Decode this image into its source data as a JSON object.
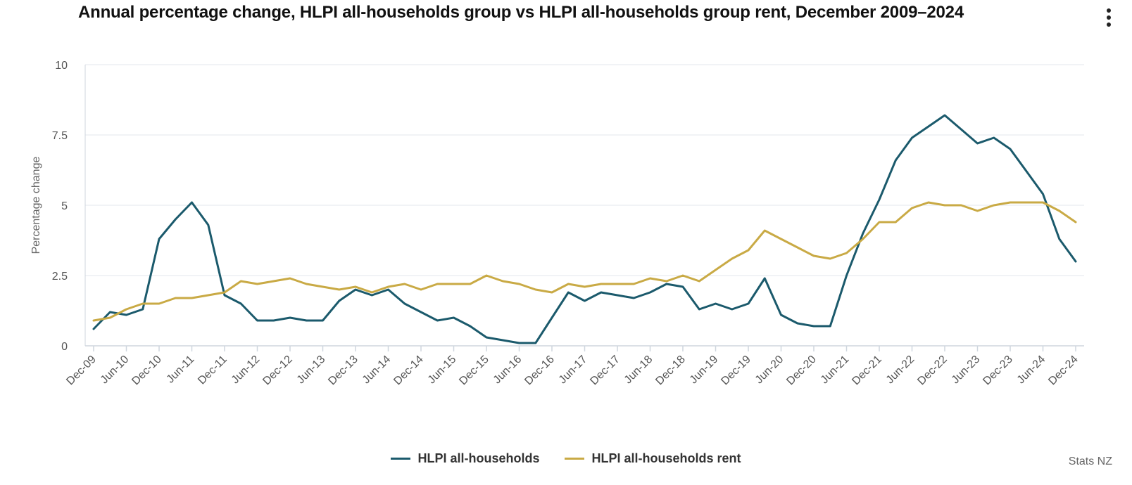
{
  "page": {
    "title": "Annual percentage change, HLPI all-households group vs HLPI all-households group rent, December 2009–2024",
    "credit": "Stats NZ",
    "menu_icon": "vertical-ellipsis-icon"
  },
  "chart_data": {
    "type": "line",
    "title": "Annual percentage change, HLPI all-households group vs HLPI all-households group rent, December 2009–2024",
    "xlabel": "",
    "ylabel": "Percentage change",
    "ylim": [
      0,
      10
    ],
    "yticks": [
      0,
      2.5,
      5,
      7.5,
      10
    ],
    "ytick_labels": [
      "0",
      "2.5",
      "5",
      "7.5",
      "10"
    ],
    "grid": true,
    "legend_position": "bottom-center",
    "x_tick_labels": [
      "Dec-09",
      "Jun-10",
      "Dec-10",
      "Jun-11",
      "Dec-11",
      "Jun-12",
      "Dec-12",
      "Jun-13",
      "Dec-13",
      "Jun-14",
      "Dec-14",
      "Jun-15",
      "Dec-15",
      "Jun-16",
      "Dec-16",
      "Jun-17",
      "Dec-17",
      "Jun-18",
      "Dec-18",
      "Jun-19",
      "Dec-19",
      "Jun-20",
      "Dec-20",
      "Jun-21",
      "Dec-21",
      "Jun-22",
      "Dec-22",
      "Jun-23",
      "Dec-23",
      "Jun-24",
      "Dec-24"
    ],
    "x": [
      "Dec-09",
      "Mar-10",
      "Jun-10",
      "Sep-10",
      "Dec-10",
      "Mar-11",
      "Jun-11",
      "Sep-11",
      "Dec-11",
      "Mar-12",
      "Jun-12",
      "Sep-12",
      "Dec-12",
      "Mar-13",
      "Jun-13",
      "Sep-13",
      "Dec-13",
      "Mar-14",
      "Jun-14",
      "Sep-14",
      "Dec-14",
      "Mar-15",
      "Jun-15",
      "Sep-15",
      "Dec-15",
      "Mar-16",
      "Jun-16",
      "Sep-16",
      "Dec-16",
      "Mar-17",
      "Jun-17",
      "Sep-17",
      "Dec-17",
      "Mar-18",
      "Jun-18",
      "Sep-18",
      "Dec-18",
      "Mar-19",
      "Jun-19",
      "Sep-19",
      "Dec-19",
      "Mar-20",
      "Jun-20",
      "Sep-20",
      "Dec-20",
      "Mar-21",
      "Jun-21",
      "Sep-21",
      "Dec-21",
      "Mar-22",
      "Jun-22",
      "Sep-22",
      "Dec-22",
      "Mar-23",
      "Jun-23",
      "Sep-23",
      "Dec-23",
      "Mar-24",
      "Jun-24",
      "Sep-24",
      "Dec-24"
    ],
    "series": [
      {
        "name": "HLPI all-households",
        "color": "#1b5a6c",
        "values": [
          0.6,
          1.2,
          1.1,
          1.3,
          3.8,
          4.5,
          5.1,
          4.3,
          1.8,
          1.5,
          0.9,
          0.9,
          1.0,
          0.9,
          0.9,
          1.6,
          2.0,
          1.8,
          2.0,
          1.5,
          1.2,
          0.9,
          1.0,
          0.7,
          0.3,
          0.2,
          0.1,
          0.1,
          1.0,
          1.9,
          1.6,
          1.9,
          1.8,
          1.7,
          1.9,
          2.2,
          2.1,
          1.3,
          1.5,
          1.3,
          1.5,
          2.4,
          1.1,
          0.8,
          0.7,
          0.7,
          2.5,
          4.0,
          5.2,
          6.6,
          7.4,
          7.8,
          8.2,
          7.7,
          7.2,
          7.4,
          7.0,
          6.2,
          5.4,
          3.8,
          3.0
        ]
      },
      {
        "name": "HLPI all-households rent",
        "color": "#c9aa45",
        "values": [
          0.9,
          1.0,
          1.3,
          1.5,
          1.5,
          1.7,
          1.7,
          1.8,
          1.9,
          2.3,
          2.2,
          2.3,
          2.4,
          2.2,
          2.1,
          2.0,
          2.1,
          1.9,
          2.1,
          2.2,
          2.0,
          2.2,
          2.2,
          2.2,
          2.5,
          2.3,
          2.2,
          2.0,
          1.9,
          2.2,
          2.1,
          2.2,
          2.2,
          2.2,
          2.4,
          2.3,
          2.5,
          2.3,
          2.7,
          3.1,
          3.4,
          4.1,
          3.8,
          3.5,
          3.2,
          3.1,
          3.3,
          3.8,
          4.4,
          4.4,
          4.9,
          5.1,
          5.0,
          5.0,
          4.8,
          5.0,
          5.1,
          5.1,
          5.1,
          4.8,
          4.4
        ]
      }
    ]
  }
}
